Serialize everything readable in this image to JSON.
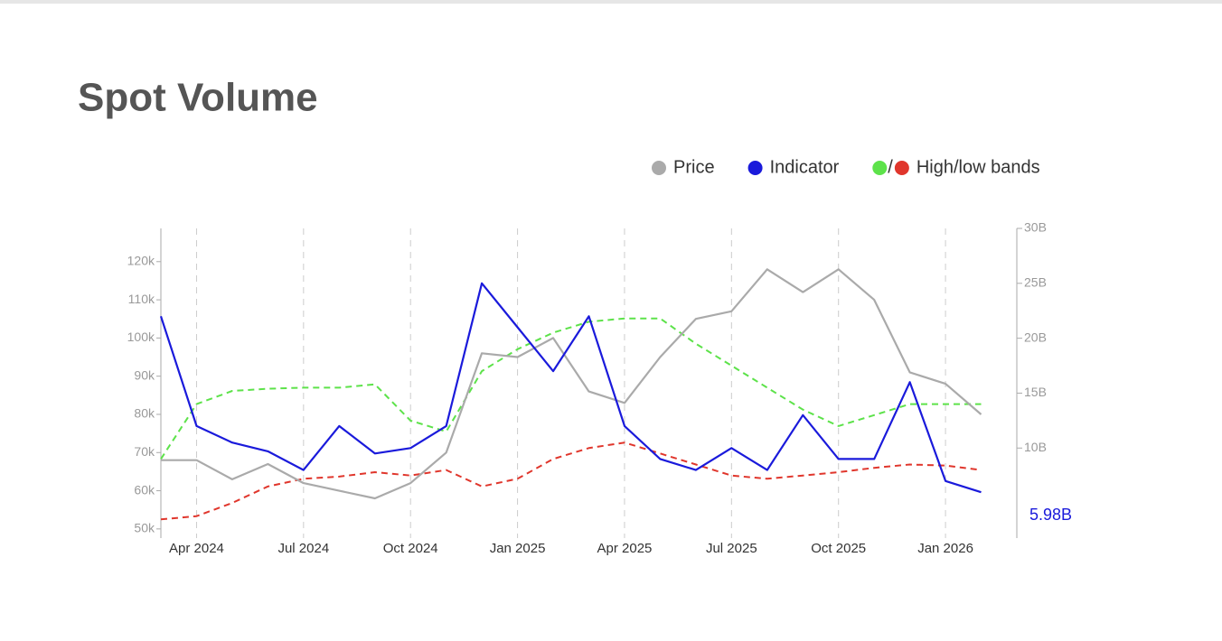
{
  "chart_data": {
    "type": "line",
    "title": "Spot Volume",
    "x": [
      "2024-03",
      "2024-04",
      "2024-05",
      "2024-06",
      "2024-07",
      "2024-08",
      "2024-09",
      "2024-10",
      "2024-11",
      "2024-12",
      "2025-01",
      "2025-02",
      "2025-03",
      "2025-04",
      "2025-05",
      "2025-06",
      "2025-07",
      "2025-08",
      "2025-09",
      "2025-10",
      "2025-11",
      "2025-12",
      "2026-01",
      "2026-02"
    ],
    "xlim": [
      "2024-03",
      "2026-03"
    ],
    "xticks": [
      {
        "value": "2024-04",
        "label": "Apr 2024"
      },
      {
        "value": "2024-07",
        "label": "Jul 2024"
      },
      {
        "value": "2024-10",
        "label": "Oct 2024"
      },
      {
        "value": "2025-01",
        "label": "Jan 2025"
      },
      {
        "value": "2025-04",
        "label": "Apr 2025"
      },
      {
        "value": "2025-07",
        "label": "Jul 2025"
      },
      {
        "value": "2025-10",
        "label": "Oct 2025"
      },
      {
        "value": "2026-01",
        "label": "Jan 2026"
      }
    ],
    "ylim": [
      47600,
      128700
    ],
    "yticks": [
      {
        "value": 50000,
        "label": "50k"
      },
      {
        "value": 60000,
        "label": "60k"
      },
      {
        "value": 70000,
        "label": "70k"
      },
      {
        "value": 80000,
        "label": "80k"
      },
      {
        "value": 90000,
        "label": "90k"
      },
      {
        "value": 100000,
        "label": "100k"
      },
      {
        "value": 110000,
        "label": "110k"
      },
      {
        "value": 120000,
        "label": "120k"
      }
    ],
    "y2lim": [
      1.8,
      30
    ],
    "y2ticks": [
      {
        "value": 10,
        "label": "10B"
      },
      {
        "value": 15,
        "label": "15B"
      },
      {
        "value": 20,
        "label": "20B"
      },
      {
        "value": 25,
        "label": "25B"
      },
      {
        "value": 30,
        "label": "30B"
      }
    ],
    "grid": true,
    "series": [
      {
        "name": "Price",
        "color": "#aaaaaa",
        "dash": false,
        "values": [
          68000,
          68000,
          63000,
          67000,
          62000,
          60000,
          58000,
          62000,
          70000,
          96000,
          95000,
          100000,
          86000,
          83000,
          95000,
          105000,
          107000,
          118000,
          112000,
          118000,
          110000,
          91000,
          88000,
          80000
        ]
      },
      {
        "name": "Indicator",
        "color": "#1a1adb",
        "axis": "y2",
        "dash": false,
        "values": [
          22,
          12,
          10.5,
          9.7,
          8,
          12,
          9.5,
          10,
          12,
          25,
          21,
          17,
          22,
          12,
          9,
          8,
          10,
          8,
          13,
          9,
          9,
          16,
          7,
          5.98
        ],
        "last_label": "5.98B"
      }
    ],
    "bands": {
      "name": "High/low bands",
      "separator": "/",
      "high": {
        "color": "#5de24a",
        "axis": "y2",
        "values": [
          9,
          14,
          15.2,
          15.4,
          15.5,
          15.5,
          15.8,
          12.5,
          11.5,
          17,
          19,
          20.5,
          21.5,
          21.8,
          21.8,
          19.5,
          17.5,
          15.5,
          13.5,
          12,
          13,
          14,
          14,
          14
        ]
      },
      "low": {
        "color": "#e0362c",
        "axis": "y2",
        "values": [
          3.5,
          3.8,
          5,
          6.5,
          7.2,
          7.4,
          7.8,
          7.5,
          8,
          6.5,
          7.2,
          9,
          10,
          10.5,
          9.5,
          8.5,
          7.5,
          7.2,
          7.5,
          7.8,
          8.2,
          8.5,
          8.4,
          8
        ]
      }
    }
  }
}
